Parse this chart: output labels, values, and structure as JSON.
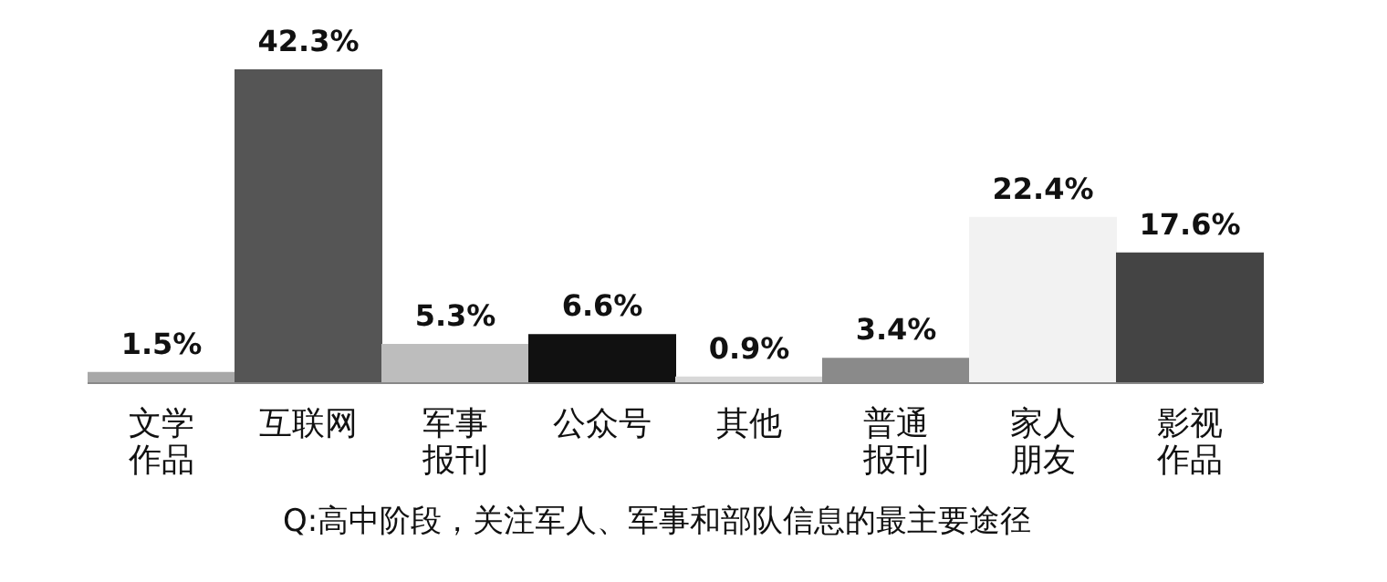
{
  "chart_data": {
    "type": "bar",
    "title": "Q:高中阶段，关注军人、军事和部队信息的最主要途径",
    "categories": [
      "文学作品",
      "互联网",
      "军事报刊",
      "公众号",
      "其他",
      "普通报刊",
      "家人朋友",
      "影视作品"
    ],
    "values": [
      1.5,
      42.3,
      5.3,
      6.6,
      0.9,
      3.4,
      22.4,
      17.6
    ],
    "value_labels": [
      "1.5%",
      "42.3%",
      "5.3%",
      "6.6%",
      "0.9%",
      "3.4%",
      "22.4%",
      "17.6%"
    ],
    "colors": [
      "#a8a8a8",
      "#555555",
      "#bdbdbd",
      "#111111",
      "#d8d8d8",
      "#8a8a8a",
      "#f2f2f2",
      "#444444"
    ]
  }
}
